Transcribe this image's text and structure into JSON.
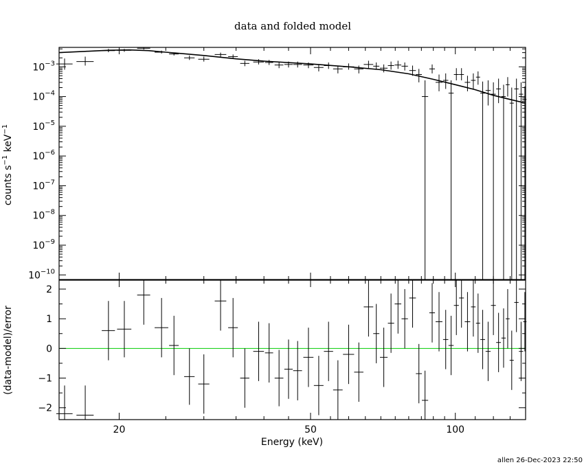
{
  "title": "data and folded model",
  "footer": "allen 26-Dec-2023 22:50",
  "colors": {
    "zero_line": "#00cc00",
    "ink": "#000000"
  },
  "chart_data": [
    {
      "type": "scatter",
      "panel": "top",
      "xlabel": "Energy (keV)",
      "ylabel": "counts s^-1 keV^-1",
      "xscale": "log",
      "yscale": "log",
      "xlim": [
        15,
        140
      ],
      "ylim": [
        7e-11,
        0.0045
      ],
      "y_ticks": [
        {
          "value": 1e-10,
          "base": "10",
          "exp": "−10"
        },
        {
          "value": 1e-09,
          "base": "10",
          "exp": "−9"
        },
        {
          "value": 1e-08,
          "base": "10",
          "exp": "−8"
        },
        {
          "value": 1e-07,
          "base": "10",
          "exp": "−7"
        },
        {
          "value": 1e-06,
          "base": "10",
          "exp": "−6"
        },
        {
          "value": 1e-05,
          "base": "10",
          "exp": "−5"
        },
        {
          "value": 0.0001,
          "base": "10",
          "exp": "−4"
        },
        {
          "value": 0.001,
          "base": "10",
          "exp": "−3"
        }
      ],
      "data": [
        {
          "x": 15.4,
          "xerr": [
            0.6,
            0.6
          ],
          "y": 0.00125,
          "ylo": 0.0008,
          "yhi": 0.0019
        },
        {
          "x": 17.0,
          "xerr": [
            0.7,
            0.7
          ],
          "y": 0.0015,
          "ylo": 0.0011,
          "yhi": 0.0022
        },
        {
          "x": 19.0,
          "xerr": [
            0.6,
            0.6
          ],
          "y": 0.0035,
          "ylo": 0.0031,
          "yhi": 0.004
        },
        {
          "x": 20.5,
          "xerr": [
            0.7,
            0.7
          ],
          "y": 0.0036,
          "ylo": 0.0032,
          "yhi": 0.004
        },
        {
          "x": 22.5,
          "xerr": [
            0.7,
            0.7
          ],
          "y": 0.0042,
          "ylo": 0.0038,
          "yhi": 0.0047
        },
        {
          "x": 24.5,
          "xerr": [
            0.8,
            0.8
          ],
          "y": 0.0031,
          "ylo": 0.0028,
          "yhi": 0.0035
        },
        {
          "x": 26.0,
          "xerr": [
            0.6,
            0.6
          ],
          "y": 0.0027,
          "ylo": 0.0024,
          "yhi": 0.003
        },
        {
          "x": 28.0,
          "xerr": [
            0.7,
            0.7
          ],
          "y": 0.002,
          "ylo": 0.0017,
          "yhi": 0.0024
        },
        {
          "x": 30.0,
          "xerr": [
            0.8,
            0.8
          ],
          "y": 0.0018,
          "ylo": 0.0015,
          "yhi": 0.0022
        },
        {
          "x": 32.5,
          "xerr": [
            0.9,
            0.9
          ],
          "y": 0.0026,
          "ylo": 0.0022,
          "yhi": 0.003
        },
        {
          "x": 34.5,
          "xerr": [
            0.8,
            0.8
          ],
          "y": 0.0022,
          "ylo": 0.0019,
          "yhi": 0.0026
        },
        {
          "x": 36.5,
          "xerr": [
            0.8,
            0.8
          ],
          "y": 0.0013,
          "ylo": 0.00105,
          "yhi": 0.0016
        },
        {
          "x": 39.0,
          "xerr": [
            1.0,
            1.0
          ],
          "y": 0.00145,
          "ylo": 0.0012,
          "yhi": 0.0018
        },
        {
          "x": 41.0,
          "xerr": [
            0.8,
            0.8
          ],
          "y": 0.0014,
          "ylo": 0.00115,
          "yhi": 0.0017
        },
        {
          "x": 43.0,
          "xerr": [
            0.9,
            0.9
          ],
          "y": 0.00115,
          "ylo": 0.0009,
          "yhi": 0.0014
        },
        {
          "x": 45.0,
          "xerr": [
            0.9,
            0.9
          ],
          "y": 0.0012,
          "ylo": 0.00095,
          "yhi": 0.0015
        },
        {
          "x": 47.0,
          "xerr": [
            1.0,
            1.0
          ],
          "y": 0.0012,
          "ylo": 0.00095,
          "yhi": 0.0015
        },
        {
          "x": 49.5,
          "xerr": [
            1.2,
            1.2
          ],
          "y": 0.00115,
          "ylo": 0.0009,
          "yhi": 0.0014
        },
        {
          "x": 52.0,
          "xerr": [
            1.2,
            1.2
          ],
          "y": 0.00095,
          "ylo": 0.0007,
          "yhi": 0.0012
        },
        {
          "x": 54.5,
          "xerr": [
            1.2,
            1.2
          ],
          "y": 0.0011,
          "ylo": 0.00085,
          "yhi": 0.0014
        },
        {
          "x": 57.0,
          "xerr": [
            1.3,
            1.3
          ],
          "y": 0.00085,
          "ylo": 0.0006,
          "yhi": 0.0011
        },
        {
          "x": 60.0,
          "xerr": [
            1.6,
            1.6
          ],
          "y": 0.001,
          "ylo": 0.0008,
          "yhi": 0.0013
        },
        {
          "x": 63.0,
          "xerr": [
            1.4,
            1.4
          ],
          "y": 0.00085,
          "ylo": 0.0006,
          "yhi": 0.0011
        },
        {
          "x": 66.0,
          "xerr": [
            1.5,
            1.5
          ],
          "y": 0.0012,
          "ylo": 0.0009,
          "yhi": 0.0016
        },
        {
          "x": 68.5,
          "xerr": [
            1.0,
            1.0
          ],
          "y": 0.00105,
          "ylo": 0.0008,
          "yhi": 0.0014
        },
        {
          "x": 71.0,
          "xerr": [
            1.3,
            1.3
          ],
          "y": 0.0009,
          "ylo": 0.00065,
          "yhi": 0.0012
        },
        {
          "x": 73.5,
          "xerr": [
            1.1,
            1.1
          ],
          "y": 0.0011,
          "ylo": 0.0008,
          "yhi": 0.0015
        },
        {
          "x": 76.0,
          "xerr": [
            1.2,
            1.2
          ],
          "y": 0.00115,
          "ylo": 0.00085,
          "yhi": 0.0016
        },
        {
          "x": 78.5,
          "xerr": [
            1.2,
            1.2
          ],
          "y": 0.00105,
          "ylo": 0.00075,
          "yhi": 0.0014
        },
        {
          "x": 81.5,
          "xerr": [
            1.3,
            1.3
          ],
          "y": 0.00075,
          "ylo": 0.0005,
          "yhi": 0.0011
        },
        {
          "x": 84.0,
          "xerr": [
            1.2,
            1.2
          ],
          "y": 0.00055,
          "ylo": 0.0003,
          "yhi": 0.00085
        },
        {
          "x": 86.5,
          "xerr": [
            1.3,
            1.3
          ],
          "y": 0.0001,
          "ylo": 1e-12,
          "yhi": 0.00035
        },
        {
          "x": 89.5,
          "xerr": [
            1.2,
            1.2
          ],
          "y": 0.00085,
          "ylo": 0.0006,
          "yhi": 0.0012
        },
        {
          "x": 92.5,
          "xerr": [
            1.5,
            1.5
          ],
          "y": 0.0003,
          "ylo": 0.00015,
          "yhi": 0.00055
        },
        {
          "x": 95.5,
          "xerr": [
            1.2,
            1.2
          ],
          "y": 0.00035,
          "ylo": 0.00018,
          "yhi": 0.0006
        },
        {
          "x": 98.0,
          "xerr": [
            1.2,
            1.2
          ],
          "y": 0.00013,
          "ylo": 1e-12,
          "yhi": 0.00035
        },
        {
          "x": 100.5,
          "xerr": [
            1.2,
            1.2
          ],
          "y": 0.00055,
          "ylo": 0.00035,
          "yhi": 0.0009
        },
        {
          "x": 103.0,
          "xerr": [
            1.2,
            1.2
          ],
          "y": 0.00055,
          "ylo": 0.00035,
          "yhi": 0.0009
        },
        {
          "x": 106.0,
          "xerr": [
            1.4,
            1.4
          ],
          "y": 0.0003,
          "ylo": 0.00015,
          "yhi": 0.0005
        },
        {
          "x": 109.0,
          "xerr": [
            1.2,
            1.2
          ],
          "y": 0.00035,
          "ylo": 0.00018,
          "yhi": 0.0006
        },
        {
          "x": 111.5,
          "xerr": [
            1.1,
            1.1
          ],
          "y": 0.00045,
          "ylo": 0.00025,
          "yhi": 0.0007
        },
        {
          "x": 114.0,
          "xerr": [
            1.3,
            1.3
          ],
          "y": 0.00013,
          "ylo": 1e-12,
          "yhi": 0.00032
        },
        {
          "x": 117.0,
          "xerr": [
            1.4,
            1.4
          ],
          "y": 0.00016,
          "ylo": 5e-05,
          "yhi": 0.00035
        },
        {
          "x": 120.0,
          "xerr": [
            1.4,
            1.4
          ],
          "y": 0.00012,
          "ylo": 1e-12,
          "yhi": 0.0003
        },
        {
          "x": 123.0,
          "xerr": [
            1.4,
            1.4
          ],
          "y": 0.00018,
          "ylo": 6e-05,
          "yhi": 0.0004
        },
        {
          "x": 126.0,
          "xerr": [
            1.3,
            1.3
          ],
          "y": 0.0001,
          "ylo": 1e-12,
          "yhi": 0.00025
        },
        {
          "x": 128.5,
          "xerr": [
            1.2,
            1.2
          ],
          "y": 0.00025,
          "ylo": 0.0001,
          "yhi": 0.00045
        },
        {
          "x": 131.0,
          "xerr": [
            1.3,
            1.3
          ],
          "y": 6e-05,
          "ylo": 1e-12,
          "yhi": 0.0002
        },
        {
          "x": 134.0,
          "xerr": [
            1.4,
            1.4
          ],
          "y": 0.00018,
          "ylo": 1e-12,
          "yhi": 0.0004
        },
        {
          "x": 137.0,
          "xerr": [
            1.4,
            1.4
          ],
          "y": 0.00012,
          "ylo": 1e-12,
          "yhi": 0.0003
        },
        {
          "x": 139.5,
          "xerr": [
            1.1,
            1.1
          ],
          "y": 8e-05,
          "ylo": 1e-12,
          "yhi": 0.00022
        }
      ],
      "model": [
        [
          15,
          0.003
        ],
        [
          17,
          0.0033
        ],
        [
          19,
          0.0036
        ],
        [
          21,
          0.0037
        ],
        [
          23,
          0.0035
        ],
        [
          25,
          0.0031
        ],
        [
          30,
          0.0024
        ],
        [
          35,
          0.00185
        ],
        [
          40,
          0.00155
        ],
        [
          50,
          0.00125
        ],
        [
          60,
          0.001
        ],
        [
          70,
          0.0008
        ],
        [
          80,
          0.00058
        ],
        [
          90,
          0.00038
        ],
        [
          100,
          0.00025
        ],
        [
          110,
          0.00017
        ],
        [
          120,
          0.00011
        ],
        [
          130,
          8e-05
        ],
        [
          140,
          6e-05
        ]
      ]
    },
    {
      "type": "scatter",
      "panel": "bottom",
      "xlabel": "Energy (keV)",
      "ylabel": "(data-model)/error",
      "xscale": "log",
      "xlim": [
        15,
        140
      ],
      "ylim": [
        -2.4,
        2.3
      ],
      "y_ticks": [
        -2,
        -1,
        0,
        1,
        2
      ],
      "x_ticks": [
        {
          "value": 20,
          "label": "20"
        },
        {
          "value": 50,
          "label": "50"
        },
        {
          "value": 100,
          "label": "100"
        }
      ],
      "zero_line": 0,
      "data": [
        {
          "x": 15.4,
          "xerr": [
            0.6,
            0.6
          ],
          "y": -2.2,
          "err": 0.95
        },
        {
          "x": 17.0,
          "xerr": [
            0.7,
            0.7
          ],
          "y": -2.25,
          "err": 1.0
        },
        {
          "x": 19.0,
          "xerr": [
            0.6,
            0.6
          ],
          "y": 0.6,
          "err": 1.0
        },
        {
          "x": 20.5,
          "xerr": [
            0.7,
            0.7
          ],
          "y": 0.65,
          "err": 0.95
        },
        {
          "x": 22.5,
          "xerr": [
            0.7,
            0.7
          ],
          "y": 1.8,
          "err": 1.0
        },
        {
          "x": 24.5,
          "xerr": [
            0.8,
            0.8
          ],
          "y": 0.7,
          "err": 1.0
        },
        {
          "x": 26.0,
          "xerr": [
            0.6,
            0.6
          ],
          "y": 0.1,
          "err": 1.0
        },
        {
          "x": 28.0,
          "xerr": [
            0.7,
            0.7
          ],
          "y": -0.95,
          "err": 0.95
        },
        {
          "x": 30.0,
          "xerr": [
            0.8,
            0.8
          ],
          "y": -1.2,
          "err": 1.0
        },
        {
          "x": 32.5,
          "xerr": [
            0.9,
            0.9
          ],
          "y": 1.6,
          "err": 1.0
        },
        {
          "x": 34.5,
          "xerr": [
            0.8,
            0.8
          ],
          "y": 0.7,
          "err": 1.0
        },
        {
          "x": 36.5,
          "xerr": [
            0.8,
            0.8
          ],
          "y": -1.0,
          "err": 1.0
        },
        {
          "x": 39.0,
          "xerr": [
            1.0,
            1.0
          ],
          "y": -0.1,
          "err": 1.0
        },
        {
          "x": 41.0,
          "xerr": [
            0.8,
            0.8
          ],
          "y": -0.15,
          "err": 1.0
        },
        {
          "x": 43.0,
          "xerr": [
            0.9,
            0.9
          ],
          "y": -1.0,
          "err": 0.95
        },
        {
          "x": 45.0,
          "xerr": [
            0.9,
            0.9
          ],
          "y": -0.7,
          "err": 1.0
        },
        {
          "x": 47.0,
          "xerr": [
            1.0,
            1.0
          ],
          "y": -0.75,
          "err": 1.0
        },
        {
          "x": 49.5,
          "xerr": [
            1.2,
            1.2
          ],
          "y": -0.3,
          "err": 1.0
        },
        {
          "x": 52.0,
          "xerr": [
            1.2,
            1.2
          ],
          "y": -1.25,
          "err": 1.0
        },
        {
          "x": 54.5,
          "xerr": [
            1.2,
            1.2
          ],
          "y": -0.1,
          "err": 1.0
        },
        {
          "x": 57.0,
          "xerr": [
            1.3,
            1.3
          ],
          "y": -1.4,
          "err": 1.0
        },
        {
          "x": 60.0,
          "xerr": [
            1.6,
            1.6
          ],
          "y": -0.2,
          "err": 1.0
        },
        {
          "x": 63.0,
          "xerr": [
            1.4,
            1.4
          ],
          "y": -0.8,
          "err": 1.0
        },
        {
          "x": 66.0,
          "xerr": [
            1.5,
            1.5
          ],
          "y": 1.4,
          "err": 1.0
        },
        {
          "x": 68.5,
          "xerr": [
            1.0,
            1.0
          ],
          "y": 0.5,
          "err": 1.0
        },
        {
          "x": 71.0,
          "xerr": [
            1.3,
            1.3
          ],
          "y": -0.3,
          "err": 1.0
        },
        {
          "x": 73.5,
          "xerr": [
            1.1,
            1.1
          ],
          "y": 0.85,
          "err": 1.0
        },
        {
          "x": 76.0,
          "xerr": [
            1.2,
            1.2
          ],
          "y": 1.5,
          "err": 1.0
        },
        {
          "x": 78.5,
          "xerr": [
            1.2,
            1.2
          ],
          "y": 1.0,
          "err": 1.0
        },
        {
          "x": 81.5,
          "xerr": [
            1.3,
            1.3
          ],
          "y": 1.7,
          "err": 1.0
        },
        {
          "x": 84.0,
          "xerr": [
            1.2,
            1.2
          ],
          "y": -0.85,
          "err": 1.0
        },
        {
          "x": 86.5,
          "xerr": [
            1.3,
            1.3
          ],
          "y": -1.75,
          "err": 1.0
        },
        {
          "x": 89.5,
          "xerr": [
            1.2,
            1.2
          ],
          "y": 1.2,
          "err": 1.0
        },
        {
          "x": 92.5,
          "xerr": [
            1.5,
            1.5
          ],
          "y": 0.9,
          "err": 1.0
        },
        {
          "x": 95.5,
          "xerr": [
            1.2,
            1.2
          ],
          "y": 0.3,
          "err": 1.0
        },
        {
          "x": 98.0,
          "xerr": [
            1.2,
            1.2
          ],
          "y": 0.1,
          "err": 1.0
        },
        {
          "x": 100.5,
          "xerr": [
            1.2,
            1.2
          ],
          "y": 1.45,
          "err": 1.0
        },
        {
          "x": 103.0,
          "xerr": [
            1.2,
            1.2
          ],
          "y": 1.7,
          "err": 1.0
        },
        {
          "x": 106.0,
          "xerr": [
            1.4,
            1.4
          ],
          "y": 0.9,
          "err": 1.0
        },
        {
          "x": 109.0,
          "xerr": [
            1.2,
            1.2
          ],
          "y": 1.4,
          "err": 1.0
        },
        {
          "x": 111.5,
          "xerr": [
            1.1,
            1.1
          ],
          "y": 0.85,
          "err": 1.0
        },
        {
          "x": 114.0,
          "xerr": [
            1.3,
            1.3
          ],
          "y": 0.3,
          "err": 1.0
        },
        {
          "x": 117.0,
          "xerr": [
            1.4,
            1.4
          ],
          "y": -0.1,
          "err": 1.0
        },
        {
          "x": 120.0,
          "xerr": [
            1.4,
            1.4
          ],
          "y": 1.45,
          "err": 1.0
        },
        {
          "x": 123.0,
          "xerr": [
            1.4,
            1.4
          ],
          "y": 0.2,
          "err": 1.0
        },
        {
          "x": 126.0,
          "xerr": [
            1.3,
            1.3
          ],
          "y": 0.35,
          "err": 1.0
        },
        {
          "x": 128.5,
          "xerr": [
            1.2,
            1.2
          ],
          "y": 1.0,
          "err": 1.0
        },
        {
          "x": 131.0,
          "xerr": [
            1.3,
            1.3
          ],
          "y": -0.4,
          "err": 1.0
        },
        {
          "x": 134.0,
          "xerr": [
            1.4,
            1.4
          ],
          "y": 1.55,
          "err": 1.0
        },
        {
          "x": 137.0,
          "xerr": [
            1.4,
            1.4
          ],
          "y": -0.1,
          "err": 1.0
        },
        {
          "x": 139.5,
          "xerr": [
            1.1,
            1.1
          ],
          "y": 0.9,
          "err": 1.0
        }
      ]
    }
  ]
}
